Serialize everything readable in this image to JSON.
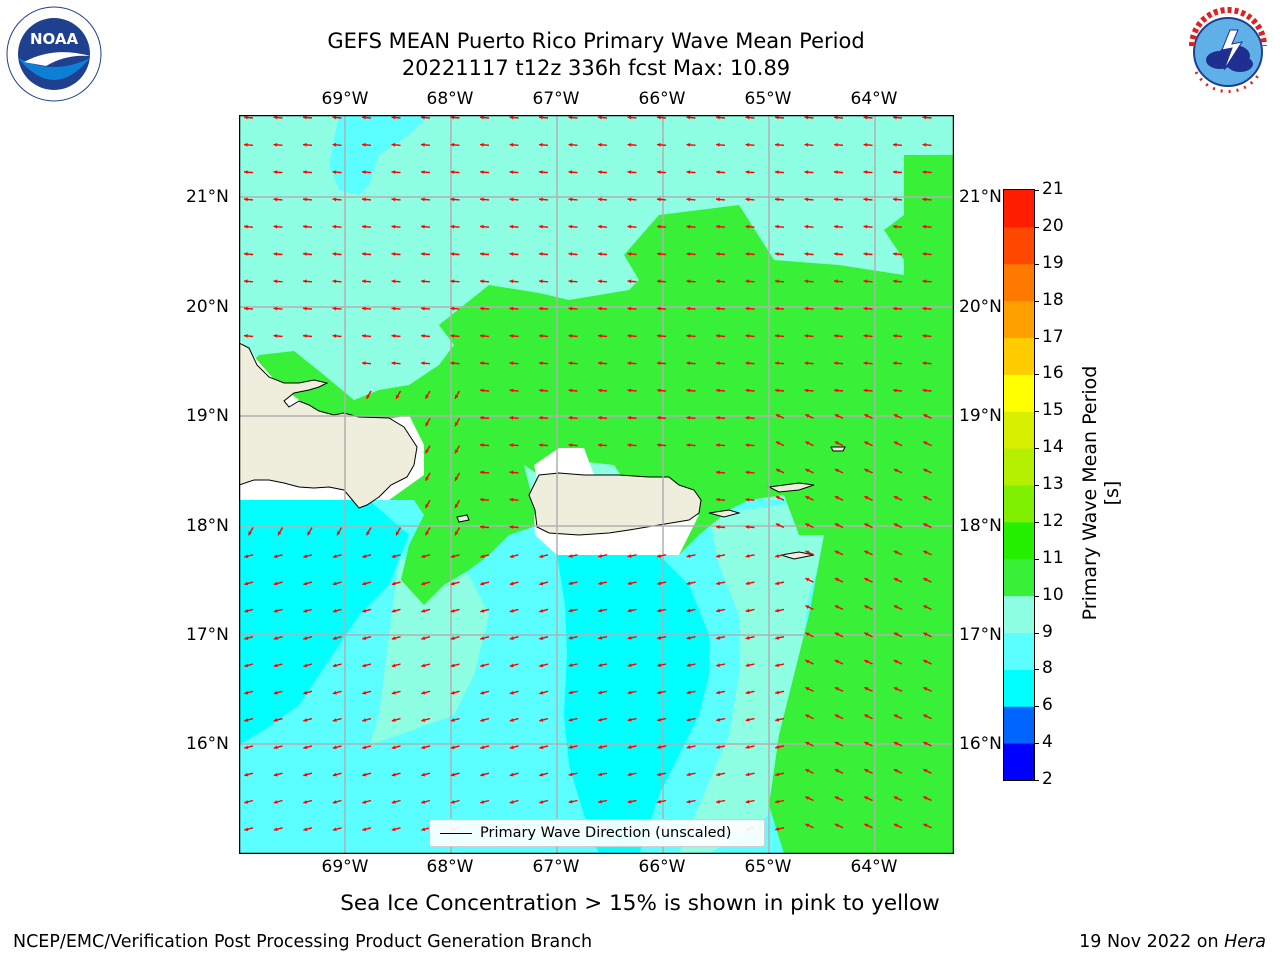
{
  "title_line1": "GEFS MEAN Puerto Rico Primary Wave Mean Period",
  "title_line2": "20221117 t12z 336h fcst   Max: 10.89",
  "logos": {
    "left": {
      "name": "NOAA",
      "text": "NOAA",
      "ring_text": "NATIONAL OCEANIC AND ATMOSPHERIC ADMINISTRATION · U.S. DEPARTMENT OF COMMERCE"
    },
    "right": {
      "name": "National Weather Service",
      "ring_text": "NATIONAL WEATHER SERVICE"
    }
  },
  "map": {
    "lon_labels": [
      "69°W",
      "68°W",
      "67°W",
      "66°W",
      "65°W",
      "64°W"
    ],
    "lat_labels": [
      "21°N",
      "20°N",
      "19°N",
      "18°N",
      "17°N",
      "16°N"
    ],
    "colors": {
      "c6_8": "#00ffff",
      "c8_9": "#5cffff",
      "c9_10": "#8effe2",
      "c10_11": "#38f038",
      "land": "#efeddc",
      "ocean_nodata": "#ffffff",
      "arrow": "#ff0000",
      "grid": "#b0b0b0"
    },
    "legend_text": "Primary Wave Direction (unscaled)"
  },
  "colorbar": {
    "label": "Primary Wave Mean Period [s]",
    "ticks": [
      "2",
      "4",
      "6",
      "8",
      "9",
      "10",
      "11",
      "12",
      "13",
      "14",
      "15",
      "16",
      "17",
      "18",
      "19",
      "20",
      "21"
    ],
    "colors": [
      "#0000ff",
      "#0064ff",
      "#00ffff",
      "#5cffff",
      "#8effe2",
      "#38f038",
      "#24f000",
      "#7ff000",
      "#b5f000",
      "#d8f000",
      "#ffff00",
      "#ffcc00",
      "#ffa000",
      "#ff7800",
      "#ff4800",
      "#ff1e00"
    ]
  },
  "ice_note": "Sea Ice Concentration > 15% is shown in pink to yellow",
  "footer": {
    "left": "NCEP/EMC/Verification Post Processing Product Generation Branch",
    "right_prefix": "19 Nov 2022 on ",
    "right_machine": "Hera"
  }
}
